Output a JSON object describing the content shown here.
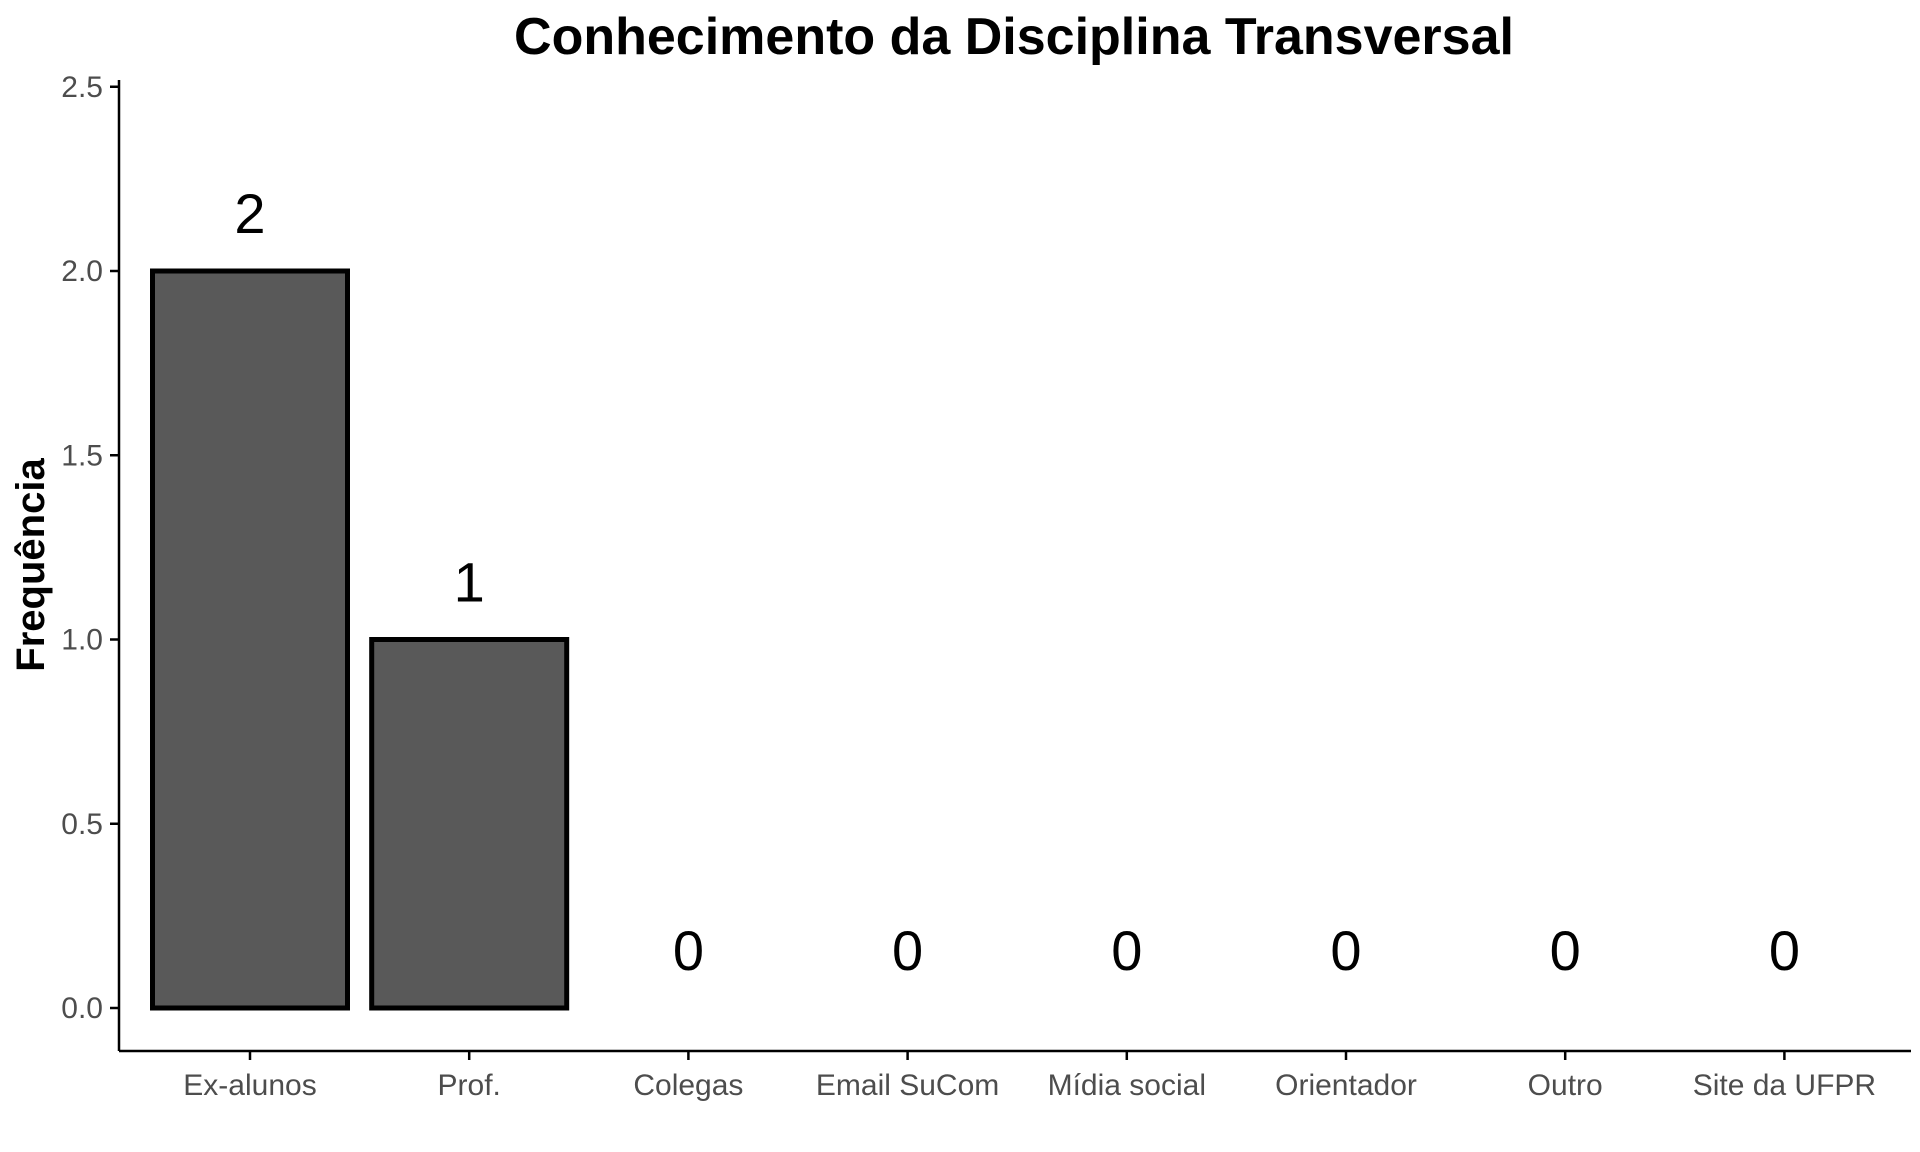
{
  "chart_data": {
    "type": "bar",
    "title": "Conhecimento da Disciplina Transversal",
    "xlabel": "",
    "ylabel": "Frequência",
    "categories": [
      "Ex-alunos",
      "Prof.",
      "Colegas",
      "Email SuCom",
      "Mídia social",
      "Orientador",
      "Outro",
      "Site da UFPR"
    ],
    "values": [
      2,
      1,
      0,
      0,
      0,
      0,
      0,
      0
    ],
    "data_labels": [
      "2",
      "1",
      "0",
      "0",
      "0",
      "0",
      "0",
      "0"
    ],
    "ylim": [
      0,
      2.5
    ],
    "yticks": [
      0.0,
      0.5,
      1.0,
      1.5,
      2.0,
      2.5
    ],
    "ytick_labels": [
      "0.0",
      "0.5",
      "1.0",
      "1.5",
      "2.0",
      "2.5"
    ],
    "grid": false,
    "legend": "none",
    "colors": {
      "bar_fill": "#595959",
      "bar_stroke": "#000000",
      "axis": "#000000",
      "tick_text": "#4d4d4d"
    }
  }
}
